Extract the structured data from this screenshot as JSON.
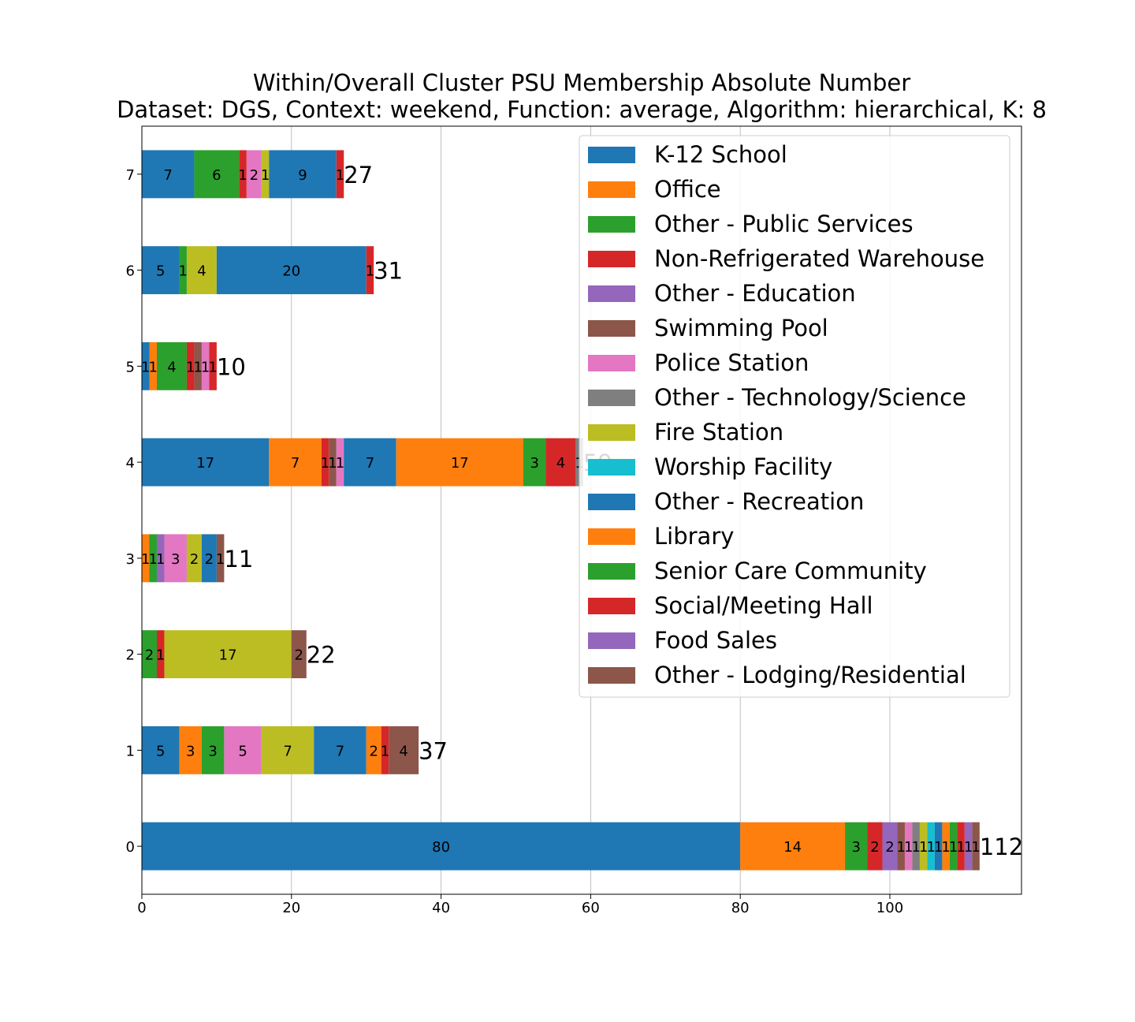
{
  "chart_data": {
    "type": "bar",
    "orientation": "horizontal",
    "stacked": true,
    "title": "Within/Overall Cluster PSU Membership Absolute Number",
    "subtitle": "Dataset: DGS, Context: weekend, Function: average, Algorithm: hierarchical, K: 8",
    "xlabel": "",
    "ylabel": "",
    "xlim": [
      0,
      117.6
    ],
    "xticks": [
      0,
      20,
      40,
      60,
      80,
      100
    ],
    "grid": true,
    "legend_position": "upper-right",
    "categories": [
      "0",
      "1",
      "2",
      "3",
      "4",
      "5",
      "6",
      "7"
    ],
    "totals": [
      112,
      37,
      22,
      11,
      59,
      10,
      31,
      27
    ],
    "series_names": [
      "K-12 School",
      "Office",
      "Other - Public Services",
      "Non-Refrigerated Warehouse",
      "Other - Education",
      "Swimming Pool",
      "Police Station",
      "Other - Technology/Science",
      "Fire Station",
      "Worship Facility",
      "Other - Recreation",
      "Library",
      "Senior Care Community",
      "Social/Meeting Hall",
      "Food Sales",
      "Other - Lodging/Residential"
    ],
    "colors": [
      "#1f77b4",
      "#ff7f0e",
      "#2ca02c",
      "#d62728",
      "#9467bd",
      "#8c564b",
      "#e377c2",
      "#7f7f7f",
      "#bcbd22",
      "#17becf"
    ],
    "bars": [
      [
        {
          "s": 0,
          "v": 80
        },
        {
          "s": 1,
          "v": 14
        },
        {
          "s": 2,
          "v": 3
        },
        {
          "s": 3,
          "v": 2
        },
        {
          "s": 4,
          "v": 2
        },
        {
          "s": 5,
          "v": 1
        },
        {
          "s": 6,
          "v": 1
        },
        {
          "s": 7,
          "v": 1
        },
        {
          "s": 8,
          "v": 1
        },
        {
          "s": 9,
          "v": 1
        },
        {
          "s": 10,
          "v": 1
        },
        {
          "s": 11,
          "v": 1
        },
        {
          "s": 12,
          "v": 1
        },
        {
          "s": 13,
          "v": 1
        },
        {
          "s": 14,
          "v": 1
        },
        {
          "s": 15,
          "v": 1
        }
      ],
      [
        {
          "s": 0,
          "v": 5
        },
        {
          "s": 1,
          "v": 3
        },
        {
          "s": 2,
          "v": 3
        },
        {
          "s": 6,
          "v": 5
        },
        {
          "s": 8,
          "v": 7
        },
        {
          "s": 10,
          "v": 7
        },
        {
          "s": 11,
          "v": 2
        },
        {
          "s": 13,
          "v": 1
        },
        {
          "s": 15,
          "v": 4
        }
      ],
      [
        {
          "s": 2,
          "v": 2
        },
        {
          "s": 3,
          "v": 1
        },
        {
          "s": 8,
          "v": 17
        },
        {
          "s": 5,
          "v": 2
        }
      ],
      [
        {
          "s": 1,
          "v": 1
        },
        {
          "s": 2,
          "v": 1
        },
        {
          "s": 4,
          "v": 1
        },
        {
          "s": 6,
          "v": 3
        },
        {
          "s": 8,
          "v": 2
        },
        {
          "s": 10,
          "v": 2
        },
        {
          "s": 15,
          "v": 1
        }
      ],
      [
        {
          "s": 0,
          "v": 17
        },
        {
          "s": 1,
          "v": 7
        },
        {
          "s": 3,
          "v": 1
        },
        {
          "s": 5,
          "v": 1
        },
        {
          "s": 6,
          "v": 1
        },
        {
          "s": 10,
          "v": 7
        },
        {
          "s": 11,
          "v": 17
        },
        {
          "s": 12,
          "v": 3
        },
        {
          "s": 13,
          "v": 4
        },
        {
          "s": 7,
          "v": 1
        }
      ],
      [
        {
          "s": 0,
          "v": 1
        },
        {
          "s": 1,
          "v": 1
        },
        {
          "s": 2,
          "v": 4
        },
        {
          "s": 3,
          "v": 1
        },
        {
          "s": 5,
          "v": 1
        },
        {
          "s": 6,
          "v": 1
        },
        {
          "s": 13,
          "v": 1
        }
      ],
      [
        {
          "s": 0,
          "v": 5
        },
        {
          "s": 2,
          "v": 1
        },
        {
          "s": 8,
          "v": 4
        },
        {
          "s": 10,
          "v": 20
        },
        {
          "s": 3,
          "v": 1
        }
      ],
      [
        {
          "s": 0,
          "v": 7
        },
        {
          "s": 2,
          "v": 6
        },
        {
          "s": 3,
          "v": 1
        },
        {
          "s": 6,
          "v": 2
        },
        {
          "s": 8,
          "v": 1
        },
        {
          "s": 10,
          "v": 9
        },
        {
          "s": 3,
          "v": 1
        }
      ]
    ]
  }
}
